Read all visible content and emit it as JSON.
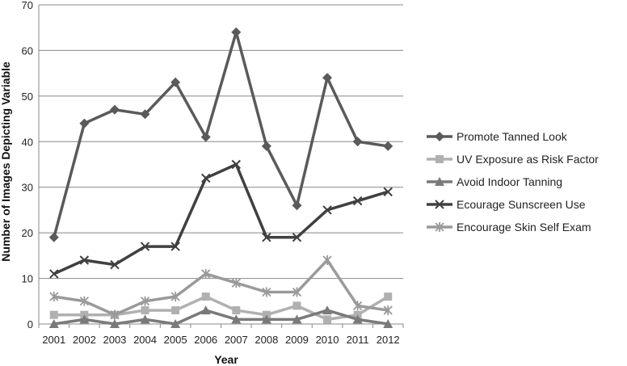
{
  "chart_data": {
    "type": "line",
    "title": "",
    "xlabel": "Year",
    "ylabel": "Number of Images Depicting Variable",
    "categories": [
      "2001",
      "2002",
      "2003",
      "2004",
      "2005",
      "2006",
      "2007",
      "2008",
      "2009",
      "2010",
      "2011",
      "2012"
    ],
    "ylim": [
      0,
      70
    ],
    "yticks": [
      0,
      10,
      20,
      30,
      40,
      50,
      60,
      70
    ],
    "grid": "horizontal",
    "legend_position": "right",
    "series": [
      {
        "name": "Promote Tanned Look",
        "values": [
          19,
          44,
          47,
          46,
          53,
          41,
          64,
          39,
          26,
          54,
          40,
          39
        ],
        "color": "#5a5a5a",
        "marker": "diamond"
      },
      {
        "name": "UV Exposure as Risk Factor",
        "values": [
          2,
          2,
          2,
          3,
          3,
          6,
          3,
          2,
          4,
          1,
          2,
          6
        ],
        "color": "#b0b0b0",
        "marker": "square"
      },
      {
        "name": "Avoid Indoor Tanning",
        "values": [
          0,
          1,
          0,
          1,
          0,
          3,
          1,
          1,
          1,
          3,
          1,
          0
        ],
        "color": "#7a7a7a",
        "marker": "triangle"
      },
      {
        "name": "Ecourage Sunscreen Use",
        "values": [
          11,
          14,
          13,
          17,
          17,
          32,
          35,
          19,
          19,
          25,
          27,
          29
        ],
        "color": "#404040",
        "marker": "x"
      },
      {
        "name": "Encourage Skin Self Exam",
        "values": [
          6,
          5,
          2,
          5,
          6,
          11,
          9,
          7,
          7,
          14,
          4,
          3
        ],
        "color": "#9a9a9a",
        "marker": "star"
      }
    ]
  }
}
